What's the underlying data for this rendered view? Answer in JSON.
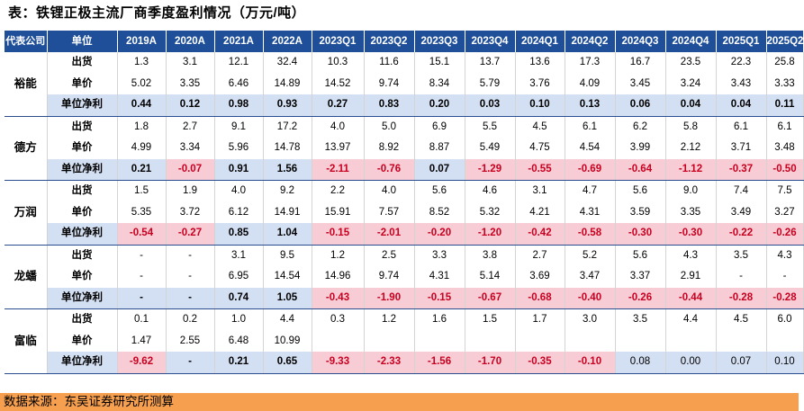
{
  "title": "表：铁锂正极主流厂商季度盈利情况（万元/吨）",
  "header": {
    "company": "代表公司",
    "unit": "单位",
    "periods": [
      "2019A",
      "2020A",
      "2021A",
      "2022A",
      "2023Q1",
      "2023Q2",
      "2023Q3",
      "2023Q4",
      "2024Q1",
      "2024Q2",
      "2024Q3",
      "2024Q4",
      "2025Q1",
      "2025Q2"
    ]
  },
  "companies": [
    {
      "name": "裕能",
      "rows": [
        {
          "metric": "出货",
          "values": [
            "1.3",
            "3.1",
            "12.1",
            "32.4",
            "10.3",
            "11.6",
            "15.1",
            "13.7",
            "13.6",
            "17.3",
            "16.7",
            "23.5",
            "22.3",
            "25.8"
          ]
        },
        {
          "metric": "单价",
          "values": [
            "5.02",
            "3.35",
            "6.46",
            "14.89",
            "14.52",
            "9.74",
            "8.34",
            "5.79",
            "3.76",
            "4.09",
            "3.45",
            "3.24",
            "3.43",
            "3.33"
          ]
        },
        {
          "metric": "单位净利",
          "values": [
            "0.44",
            "0.12",
            "0.98",
            "0.93",
            "0.27",
            "0.83",
            "0.20",
            "0.03",
            "0.10",
            "0.13",
            "0.06",
            "0.04",
            "0.04",
            "0.11"
          ]
        }
      ]
    },
    {
      "name": "德方",
      "rows": [
        {
          "metric": "出货",
          "values": [
            "1.8",
            "2.7",
            "9.1",
            "17.2",
            "4.0",
            "5.0",
            "6.9",
            "5.5",
            "4.5",
            "6.1",
            "6.2",
            "5.8",
            "6.1",
            "6.1"
          ]
        },
        {
          "metric": "单价",
          "values": [
            "4.99",
            "3.34",
            "5.96",
            "14.78",
            "13.97",
            "8.92",
            "8.87",
            "5.49",
            "4.75",
            "4.54",
            "3.99",
            "2.12",
            "3.71",
            "3.48"
          ]
        },
        {
          "metric": "单位净利",
          "values": [
            "0.21",
            "-0.07",
            "0.91",
            "1.56",
            "-2.11",
            "-0.76",
            "0.07",
            "-1.29",
            "-0.55",
            "-0.69",
            "-0.64",
            "-1.12",
            "-0.37",
            "-0.50"
          ]
        }
      ]
    },
    {
      "name": "万润",
      "rows": [
        {
          "metric": "出货",
          "values": [
            "1.5",
            "1.9",
            "4.0",
            "9.2",
            "2.2",
            "4.0",
            "5.6",
            "4.6",
            "3.1",
            "4.7",
            "5.6",
            "9.0",
            "7.4",
            "7.5"
          ]
        },
        {
          "metric": "单价",
          "values": [
            "5.35",
            "3.72",
            "6.12",
            "14.91",
            "15.91",
            "7.57",
            "8.52",
            "5.32",
            "4.21",
            "4.31",
            "3.59",
            "3.35",
            "3.49",
            "3.27"
          ]
        },
        {
          "metric": "单位净利",
          "values": [
            "-0.54",
            "-0.27",
            "0.85",
            "1.04",
            "-0.15",
            "-2.01",
            "-0.20",
            "-1.20",
            "-0.42",
            "-0.58",
            "-0.30",
            "-0.30",
            "-0.22",
            "-0.26"
          ]
        }
      ]
    },
    {
      "name": "龙蟠",
      "rows": [
        {
          "metric": "出货",
          "values": [
            "-",
            "-",
            "3.1",
            "9.5",
            "1.2",
            "2.5",
            "3.3",
            "3.8",
            "2.7",
            "5.2",
            "5.6",
            "4.3",
            "3.5",
            "4.3"
          ]
        },
        {
          "metric": "单价",
          "values": [
            "-",
            "-",
            "6.95",
            "14.54",
            "14.96",
            "9.74",
            "4.31",
            "5.14",
            "3.69",
            "3.47",
            "3.37",
            "2.91",
            "-",
            "-"
          ]
        },
        {
          "metric": "单位净利",
          "values": [
            "-",
            "-",
            "0.74",
            "1.05",
            "-0.43",
            "-1.90",
            "-0.15",
            "-0.67",
            "-0.68",
            "-0.40",
            "-0.26",
            "-0.44",
            "-0.28",
            "-0.28"
          ]
        }
      ]
    },
    {
      "name": "富临",
      "rows": [
        {
          "metric": "出货",
          "values": [
            "0.1",
            "0.2",
            "1.0",
            "4.4",
            "0.3",
            "1.2",
            "1.6",
            "1.5",
            "1.7",
            "3.0",
            "3.5",
            "4.4",
            "4.5",
            "6.0"
          ]
        },
        {
          "metric": "单价",
          "values": [
            "1.47",
            "2.55",
            "6.48",
            "10.99",
            "",
            "",
            "",
            "",
            "",
            "",
            "",
            "",
            "",
            ""
          ]
        },
        {
          "metric": "单位净利",
          "values": [
            "-9.62",
            "-",
            "0.21",
            "0.65",
            "-9.33",
            "-2.33",
            "-1.56",
            "-1.70",
            "-0.35",
            "-0.10",
            "0.08",
            "0.00",
            "0.07",
            "0.10"
          ]
        }
      ]
    }
  ],
  "source": "数据来源：东吴证券研究所测算"
}
